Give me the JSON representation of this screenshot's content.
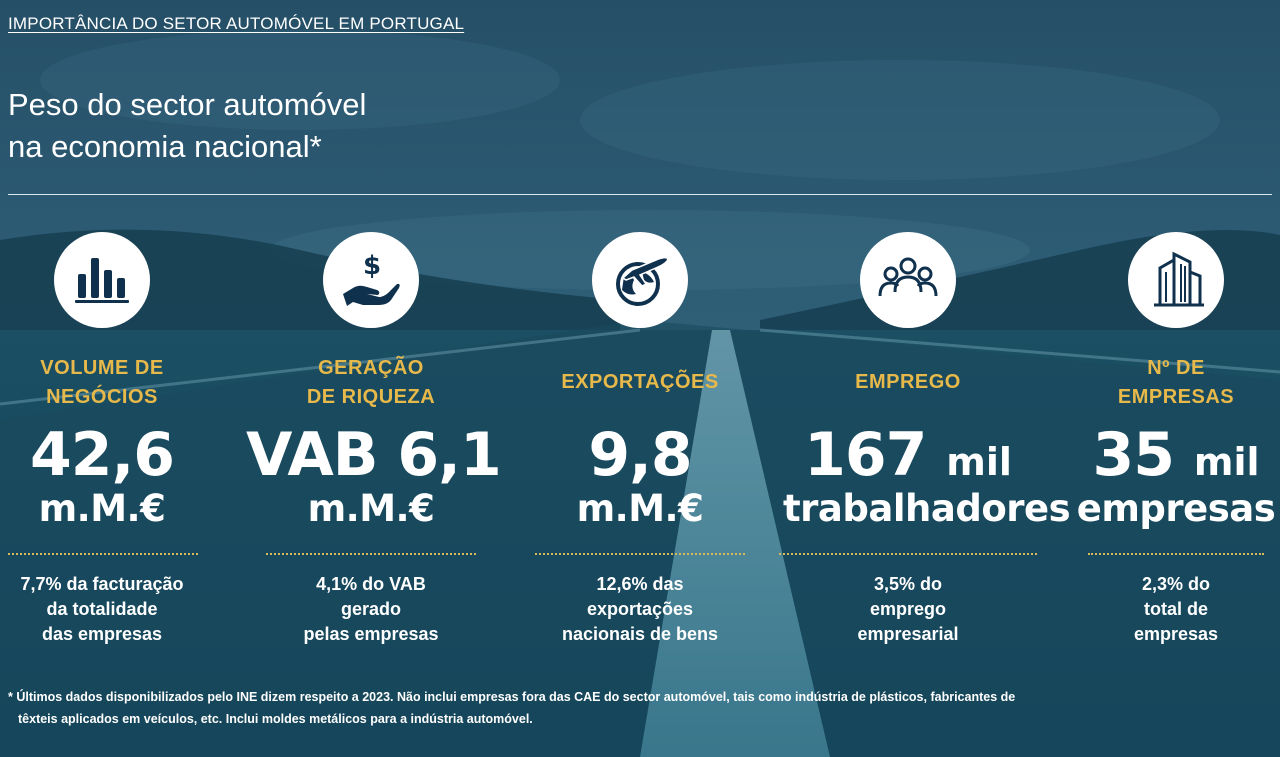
{
  "header": {
    "kicker": "IMPORTÂNCIA DO SETOR AUTOMÓVEL EM PORTUGAL",
    "title_line1": "Peso do sector automóvel",
    "title_line2": "na economia nacional*"
  },
  "colors": {
    "background": "#164f66",
    "accent_gold": "#e7b94a",
    "icon_navy": "#10314d"
  },
  "stats": [
    {
      "icon": "bar-chart-icon",
      "category_line1": "VOLUME DE",
      "category_line2": "NEGÓCIOS",
      "value_line1": "42,6",
      "value_line1_suffix": "",
      "value_line2": "m.M.€",
      "desc_line1": "7,7% da facturação",
      "desc_line2": "da totalidade",
      "desc_line3": "das empresas"
    },
    {
      "icon": "hand-dollar-icon",
      "category_line1": "GERAÇÃO",
      "category_line2": "DE RIQUEZA",
      "value_line1": "VAB 6,1",
      "value_line1_suffix": "",
      "value_line2": "m.M.€",
      "desc_line1": "4,1% do VAB",
      "desc_line2": "gerado",
      "desc_line3": "pelas empresas"
    },
    {
      "icon": "globe-plane-icon",
      "category_line1": "EXPORTAÇÕES",
      "category_line2": "",
      "value_line1": "9,8",
      "value_line1_suffix": "",
      "value_line2": "m.M.€",
      "desc_line1": "12,6% das",
      "desc_line2": "exportações",
      "desc_line3": "nacionais de bens"
    },
    {
      "icon": "people-group-icon",
      "category_line1": "EMPREGO",
      "category_line2": "",
      "value_line1": "167",
      "value_line1_suffix": "mil",
      "value_line2": "trabalhadores",
      "desc_line1": "3,5% do",
      "desc_line2": "emprego",
      "desc_line3": "empresarial"
    },
    {
      "icon": "buildings-icon",
      "category_line1": "Nº DE",
      "category_line2": "EMPRESAS",
      "value_line1": "35",
      "value_line1_suffix": "mil",
      "value_line2": "empresas",
      "desc_line1": "2,3% do",
      "desc_line2": "total de",
      "desc_line3": "empresas"
    }
  ],
  "footnote": {
    "line1": "* Últimos dados disponibilizados pelo INE dizem respeito a 2023. Não inclui empresas fora das CAE do sector automóvel, tais como indústria de plásticos, fabricantes de",
    "line2": "têxteis aplicados em veículos, etc. Inclui moldes metálicos para a indústria automóvel."
  }
}
